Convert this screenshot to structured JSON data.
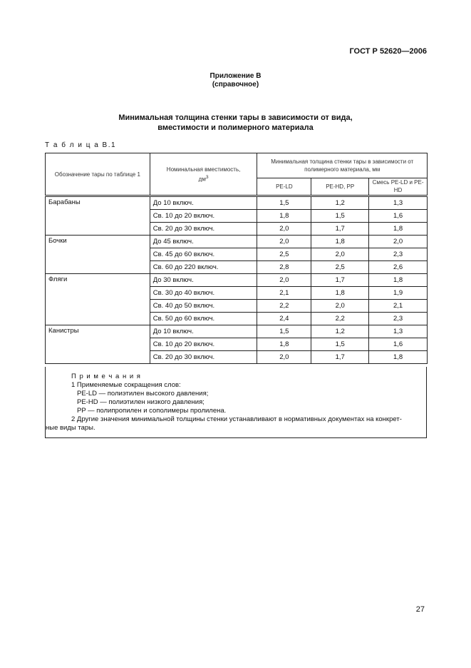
{
  "header": {
    "doc_number": "ГОСТ Р 52620—2006"
  },
  "appendix": {
    "title": "Приложение В",
    "subtitle": "(справочное)"
  },
  "title": {
    "line1": "Минимальная толщина стенки тары в зависимости от вида,",
    "line2": "вместимости и полимерного материала"
  },
  "table_label": "Т а б л и ц а  В.1",
  "table": {
    "col1": "Обозначение тары по таблице 1",
    "col2": "Номинальная вместимость,",
    "col2_unit": "дм",
    "col2_sup": "3",
    "col3_group": "Минимальная толщина стенки тары в зависимости от полимерного материала, мм",
    "sub": [
      "PE-LD",
      "PE-HD, PP",
      "Смесь PE-LD и PE-HD"
    ],
    "groups": [
      {
        "name": "Барабаны",
        "rows": [
          [
            "До 10 включ.",
            "1,5",
            "1,2",
            "1,3"
          ],
          [
            "Св. 10 до 20 включ.",
            "1,8",
            "1,5",
            "1,6"
          ],
          [
            "Св. 20 до 30 включ.",
            "2,0",
            "1,7",
            "1,8"
          ]
        ]
      },
      {
        "name": "Бочки",
        "rows": [
          [
            "До 45 включ.",
            "2,0",
            "1,8",
            "2,0"
          ],
          [
            "Св. 45 до 60 включ.",
            "2,5",
            "2,0",
            "2,3"
          ],
          [
            "Св. 60 до 220 включ.",
            "2,8",
            "2,5",
            "2,6"
          ]
        ]
      },
      {
        "name": "Фляги",
        "rows": [
          [
            "До 30 включ.",
            "2,0",
            "1,7",
            "1,8"
          ],
          [
            "Св. 30 до 40 включ.",
            "2,1",
            "1,8",
            "1,9"
          ],
          [
            "Св. 40 до 50 включ.",
            "2,2",
            "2,0",
            "2,1"
          ],
          [
            "Св. 50 до 60 включ.",
            "2,4",
            "2,2",
            "2,3"
          ]
        ]
      },
      {
        "name": "Канистры",
        "rows": [
          [
            "До 10 включ.",
            "1,5",
            "1,2",
            "1,3"
          ],
          [
            "Св. 10 до 20 включ.",
            "1,8",
            "1,5",
            "1,6"
          ],
          [
            "Св. 20 до 30 включ.",
            "2,0",
            "1,7",
            "1,8"
          ]
        ]
      }
    ]
  },
  "notes": {
    "heading": "П р и м е ч а н и я",
    "n1": "1 Применяемые сокращения слов:",
    "a1": "PE-LD — полиэтилен высокого давления;",
    "a2": "PE-HD — полиэтилен низкого давления;",
    "a3": "PP — полипропилен и сополимеры пролилена.",
    "n2a": "2 Другие значения минимальной толщины стенки устанавливают в нормативных документах на конкрет-",
    "n2b": "ные виды тары."
  },
  "page_number": "27"
}
